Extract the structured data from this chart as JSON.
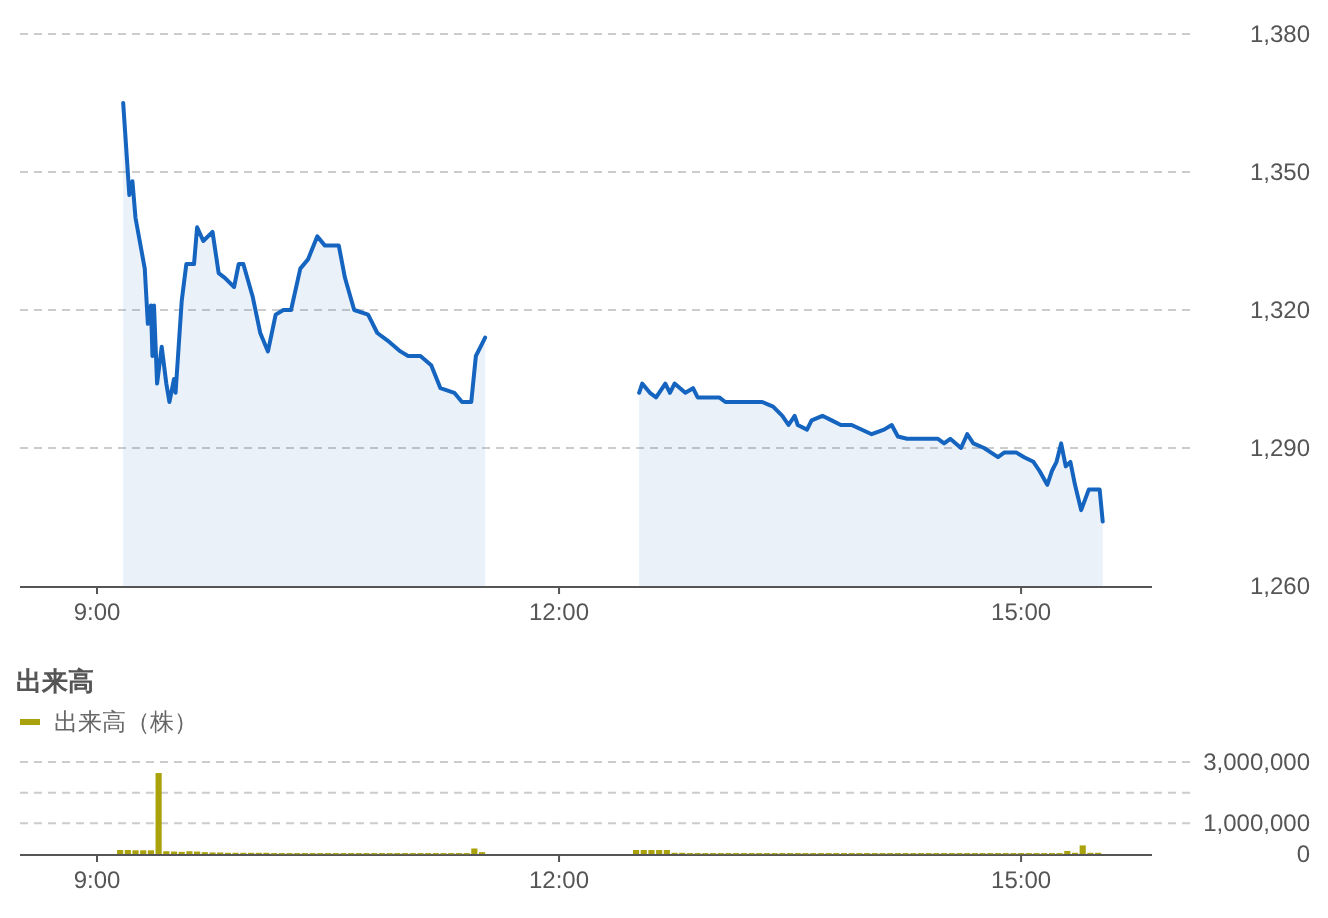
{
  "chart_data": [
    {
      "type": "area",
      "x": [
        9.17,
        9.21,
        9.23,
        9.25,
        9.31,
        9.33,
        9.35,
        9.36,
        9.37,
        9.39,
        9.42,
        9.45,
        9.47,
        9.5,
        9.51,
        9.55,
        9.58,
        9.63,
        9.65,
        9.69,
        9.75,
        9.79,
        9.83,
        9.89,
        9.92,
        9.95,
        10.01,
        10.06,
        10.11,
        10.16,
        10.21,
        10.26,
        10.32,
        10.37,
        10.43,
        10.48,
        10.57,
        10.61,
        10.67,
        10.76,
        10.82,
        10.9,
        10.97,
        11.02,
        11.1,
        11.17,
        11.23,
        11.32,
        11.37,
        11.43,
        11.46,
        11.49,
        11.52
      ],
      "series": [
        {
          "color": "#1565c0",
          "values": [
            1365,
            1345,
            1348,
            1340,
            1329,
            1317,
            1321,
            1310,
            1321,
            1304,
            1312,
            1304,
            1300,
            1305,
            1302,
            1322,
            1330,
            1330,
            1338,
            1335,
            1337,
            1328,
            1327,
            1325,
            1330,
            1330,
            1323,
            1315,
            1311,
            1319,
            1320,
            1320,
            1329,
            1331,
            1336,
            1334,
            1334,
            1327,
            1320,
            1319,
            1315,
            1313,
            1311,
            1310,
            1310,
            1308,
            1303,
            1302,
            1300,
            1300,
            1310,
            1312,
            1314
          ]
        },
        {
          "color": "#1565c0",
          "x": [
            12.52,
            12.54,
            12.59,
            12.63,
            12.69,
            12.72,
            12.75,
            12.82,
            12.87,
            12.9,
            13.04,
            13.08,
            13.27,
            13.32,
            13.39,
            13.45,
            13.49,
            13.53,
            13.55,
            13.61,
            13.64,
            13.71,
            13.77,
            13.83,
            13.9,
            14.03,
            14.11,
            14.16,
            14.2,
            14.26,
            14.46,
            14.5,
            14.54,
            14.61,
            14.65,
            14.69,
            14.76,
            14.85,
            14.89,
            14.97,
            15.02,
            15.08,
            15.12,
            15.17,
            15.2,
            15.23,
            15.26,
            15.29,
            15.32,
            15.35,
            15.39,
            15.44,
            15.51,
            15.53
          ],
          "values": [
            1302,
            1304,
            1302,
            1301,
            1304,
            1302,
            1304,
            1302,
            1303,
            1301,
            1301,
            1300,
            1300,
            1300,
            1299,
            1297,
            1295,
            1297,
            1295,
            1294,
            1296,
            1297,
            1296,
            1295,
            1295,
            1293,
            1294,
            1295,
            1292.5,
            1292,
            1292,
            1291,
            1292,
            1290,
            1293,
            1291,
            1290,
            1288,
            1289,
            1289,
            1288,
            1287,
            1285,
            1282,
            1285,
            1287,
            1291,
            1286,
            1287,
            1282,
            1276.5,
            1281,
            1281,
            1274
          ]
        }
      ],
      "xlim": [
        8.5,
        15.85
      ],
      "xticks": [
        {
          "value": 9,
          "label": "9:00"
        },
        {
          "value": 12,
          "label": "12:00"
        },
        {
          "value": 15,
          "label": "15:00"
        }
      ],
      "ylim": [
        1260,
        1380
      ],
      "yticks": [
        {
          "value": 1260,
          "label": "1,260"
        },
        {
          "value": 1290,
          "label": "1,290"
        },
        {
          "value": 1320,
          "label": "1,320"
        },
        {
          "value": 1350,
          "label": "1,350"
        },
        {
          "value": 1380,
          "label": "1,380"
        }
      ],
      "grid": "y"
    },
    {
      "type": "bar",
      "title": "出来高",
      "x": [
        9.15,
        9.2,
        9.25,
        9.3,
        9.35,
        9.4,
        9.45,
        9.5,
        9.55,
        9.6,
        9.65,
        9.7,
        9.75,
        9.8,
        9.85,
        9.9,
        9.95,
        10.0,
        10.05,
        10.1,
        10.15,
        10.2,
        10.25,
        10.3,
        10.35,
        10.4,
        10.45,
        10.5,
        10.55,
        10.6,
        10.65,
        10.7,
        10.75,
        10.8,
        10.85,
        10.9,
        10.95,
        11.0,
        11.05,
        11.1,
        11.15,
        11.2,
        11.25,
        11.3,
        11.35,
        11.4,
        11.45,
        11.5,
        12.5,
        12.55,
        12.6,
        12.65,
        12.7,
        12.75,
        12.8,
        12.85,
        12.9,
        12.95,
        13.0,
        13.05,
        13.1,
        13.15,
        13.2,
        13.25,
        13.3,
        13.35,
        13.4,
        13.45,
        13.5,
        13.55,
        13.6,
        13.65,
        13.7,
        13.75,
        13.8,
        13.85,
        13.9,
        13.95,
        14.0,
        14.05,
        14.1,
        14.15,
        14.2,
        14.25,
        14.3,
        14.35,
        14.4,
        14.45,
        14.5,
        14.55,
        14.6,
        14.65,
        14.7,
        14.75,
        14.8,
        14.85,
        14.9,
        14.95,
        15.0,
        15.05,
        15.1,
        15.15,
        15.2,
        15.25,
        15.3,
        15.35,
        15.4,
        15.45,
        15.5
      ],
      "series": [
        {
          "name": "出来高（株）",
          "color": "#a9a20c",
          "values": [
            130000,
            130000,
            120000,
            120000,
            120000,
            2640000,
            90000,
            80000,
            70000,
            90000,
            80000,
            60000,
            50000,
            50000,
            40000,
            40000,
            40000,
            40000,
            40000,
            40000,
            30000,
            30000,
            30000,
            30000,
            30000,
            30000,
            30000,
            30000,
            30000,
            30000,
            30000,
            30000,
            30000,
            30000,
            30000,
            30000,
            30000,
            30000,
            30000,
            30000,
            30000,
            30000,
            30000,
            30000,
            30000,
            30000,
            180000,
            60000,
            130000,
            130000,
            130000,
            130000,
            130000,
            40000,
            40000,
            30000,
            30000,
            30000,
            30000,
            30000,
            30000,
            30000,
            30000,
            30000,
            30000,
            30000,
            30000,
            30000,
            30000,
            30000,
            30000,
            30000,
            30000,
            30000,
            30000,
            30000,
            30000,
            30000,
            30000,
            30000,
            30000,
            30000,
            30000,
            30000,
            30000,
            30000,
            30000,
            30000,
            30000,
            30000,
            30000,
            30000,
            30000,
            30000,
            30000,
            30000,
            30000,
            30000,
            30000,
            30000,
            30000,
            30000,
            30000,
            30000,
            100000,
            40000,
            280000,
            40000,
            40000
          ]
        }
      ],
      "xlim": [
        8.5,
        15.85
      ],
      "xticks": [
        {
          "value": 9,
          "label": "9:00"
        },
        {
          "value": 12,
          "label": "12:00"
        },
        {
          "value": 15,
          "label": "15:00"
        }
      ],
      "ylim": [
        0,
        3000000
      ],
      "yticks": [
        0,
        {
          "value": 1000000,
          "label": "1,000,000"
        },
        {
          "value": 2000000,
          "label": null
        },
        {
          "value": 3000000,
          "label": "3,000,000"
        }
      ],
      "grid": "y",
      "legend": "top left"
    }
  ]
}
